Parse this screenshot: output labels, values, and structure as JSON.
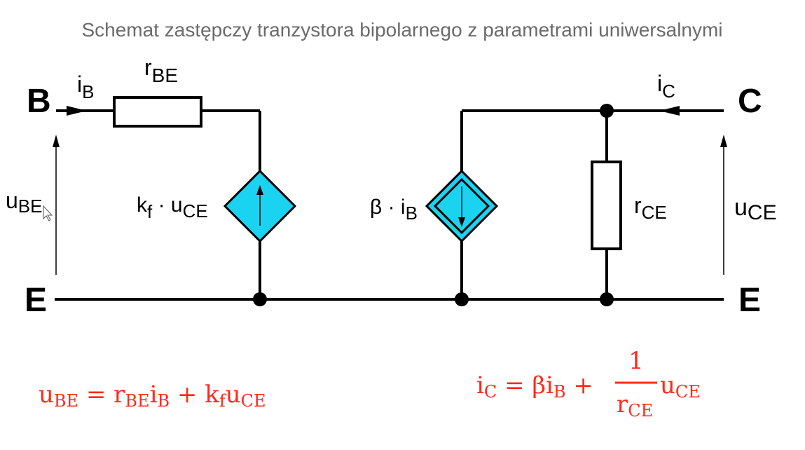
{
  "title": "Schemat zastępczy tranzystora bipolarnego z parametrami uniwersalnymi",
  "nodes": {
    "base": "B",
    "collector": "C",
    "emitter_left": "E",
    "emitter_right": "E"
  },
  "currents": {
    "i_b": {
      "main": "i",
      "sub": "B"
    },
    "i_c": {
      "main": "i",
      "sub": "C"
    }
  },
  "resistors": {
    "r_be": {
      "main": "r",
      "sub": "BE"
    },
    "r_ce": {
      "main": "r",
      "sub": "CE"
    }
  },
  "voltages": {
    "u_be": {
      "main": "u",
      "sub": "BE"
    },
    "u_ce": {
      "main": "u",
      "sub": "CE"
    }
  },
  "sources": {
    "voltage_source": {
      "k": "k",
      "k_sub": "f",
      "dot": " · u",
      "u_sub": "CE"
    },
    "current_source": {
      "beta": "β · i",
      "i_sub": "B"
    }
  },
  "equations": {
    "left": {
      "u": "u",
      "u_sub": "BE",
      "eq": " = r",
      "r_sub": "BE",
      "i": "i",
      "i_sub": "B",
      "plus": " + k",
      "k_sub": "f",
      "u2": "u",
      "u2_sub": "CE"
    },
    "right": {
      "i": "i",
      "i_sub": "C",
      "eq": " = βi",
      "i2_sub": "B",
      "plus": " +",
      "num": "1",
      "den": "r",
      "den_sub": "CE",
      "u": "u",
      "u_sub": "CE"
    }
  },
  "colors": {
    "source_fill": "#19d3f1",
    "equation": "#ff2a1a",
    "title": "#6b6b6b"
  }
}
